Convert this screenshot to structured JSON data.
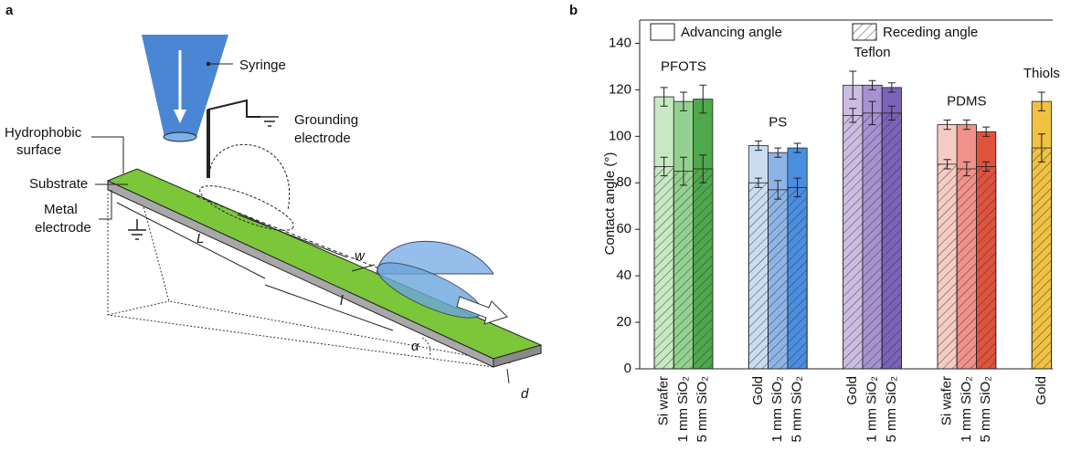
{
  "panel_a": {
    "label": "a",
    "syringe": "Syringe",
    "grounding_electrode": [
      "Grounding",
      "electrode"
    ],
    "hydrophobic_surface": [
      "Hydrophobic",
      "surface"
    ],
    "substrate": "Substrate",
    "metal_electrode": [
      "Metal",
      "electrode"
    ],
    "water_drop": [
      "Water",
      "drop"
    ],
    "L": "L",
    "w": "w",
    "l": "l",
    "alpha": "α",
    "d": "d"
  },
  "chart_data": {
    "label": "b",
    "type": "bar",
    "ylabel": "Contact angle (°)",
    "ylim": [
      0,
      150
    ],
    "yticks": [
      0,
      20,
      40,
      60,
      80,
      100,
      120,
      140
    ],
    "series": [
      {
        "name": "Advancing angle"
      },
      {
        "name": "Receding angle"
      }
    ],
    "groups": [
      {
        "name": "PFOTS",
        "bars": [
          {
            "label": "Si wafer",
            "color": "#c6e8c2",
            "advancing": 117,
            "advancing_error": 4,
            "receding": 87,
            "receding_error": 4
          },
          {
            "label": "1 mm SiO₂",
            "color": "#93d28e",
            "advancing": 115,
            "advancing_error": 4,
            "receding": 85,
            "receding_error": 6
          },
          {
            "label": "5 mm SiO₂",
            "color": "#4ea84c",
            "advancing": 116,
            "advancing_error": 6,
            "receding": 86,
            "receding_error": 6
          }
        ]
      },
      {
        "name": "PS",
        "bars": [
          {
            "label": "Gold",
            "color": "#c9dcf0",
            "advancing": 96,
            "advancing_error": 2,
            "receding": 80,
            "receding_error": 2
          },
          {
            "label": "1 mm SiO₂",
            "color": "#8db4e8",
            "advancing": 93,
            "advancing_error": 2,
            "receding": 77,
            "receding_error": 4
          },
          {
            "label": "5 mm SiO₂",
            "color": "#4a8ee0",
            "advancing": 95,
            "advancing_error": 2,
            "receding": 78,
            "receding_error": 4
          }
        ]
      },
      {
        "name": "Teflon",
        "bars": [
          {
            "label": "Gold",
            "color": "#cbbde2",
            "advancing": 122,
            "advancing_error": 6,
            "receding": 109,
            "receding_error": 3
          },
          {
            "label": "1 mm SiO₂",
            "color": "#a692d2",
            "advancing": 122,
            "advancing_error": 2,
            "receding": 110,
            "receding_error": 5
          },
          {
            "label": "5 mm SiO₂",
            "color": "#7b62ba",
            "advancing": 121,
            "advancing_error": 2,
            "receding": 110,
            "receding_error": 3
          }
        ]
      },
      {
        "name": "PDMS",
        "bars": [
          {
            "label": "Si wafer",
            "color": "#f6cbc3",
            "advancing": 105,
            "advancing_error": 2,
            "receding": 88,
            "receding_error": 2
          },
          {
            "label": "1 mm SiO₂",
            "color": "#f1918a",
            "advancing": 105,
            "advancing_error": 2,
            "receding": 86,
            "receding_error": 3
          },
          {
            "label": "5 mm SiO₂",
            "color": "#e0523c",
            "advancing": 102,
            "advancing_error": 2,
            "receding": 87,
            "receding_error": 2
          }
        ]
      },
      {
        "name": "Thiols",
        "bars": [
          {
            "label": "Gold",
            "color": "#f0c142",
            "advancing": 115,
            "advancing_error": 4,
            "receding": 95,
            "receding_error": 6
          }
        ]
      }
    ]
  }
}
